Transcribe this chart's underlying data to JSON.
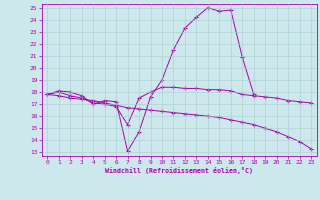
{
  "title": "",
  "xlabel": "Windchill (Refroidissement éolien,°C)",
  "background_color": "#cce8ec",
  "grid_color": "#aacccc",
  "line_color": "#aa00aa",
  "xlim": [
    -0.5,
    23.5
  ],
  "ylim": [
    12.7,
    25.3
  ],
  "yticks": [
    13,
    14,
    15,
    16,
    17,
    18,
    19,
    20,
    21,
    22,
    23,
    24,
    25
  ],
  "xticks": [
    0,
    1,
    2,
    3,
    4,
    5,
    6,
    7,
    8,
    9,
    10,
    11,
    12,
    13,
    14,
    15,
    16,
    17,
    18,
    19,
    20,
    21,
    22,
    23
  ],
  "series": [
    {
      "x": [
        0,
        1,
        2,
        3,
        4,
        5,
        6,
        7,
        8,
        9,
        10,
        11,
        12,
        13,
        14,
        15,
        16,
        17,
        18
      ],
      "y": [
        17.8,
        18.1,
        18.0,
        17.7,
        17.0,
        17.3,
        17.2,
        13.1,
        14.7,
        17.6,
        19.0,
        21.5,
        23.3,
        24.2,
        25.0,
        24.7,
        24.8,
        20.9,
        17.8
      ]
    },
    {
      "x": [
        0,
        1,
        2,
        3,
        4,
        5,
        6,
        7,
        8,
        9,
        10,
        11,
        12,
        13,
        14,
        15,
        16,
        17,
        18,
        19,
        20,
        21,
        22,
        23
      ],
      "y": [
        17.8,
        18.0,
        17.7,
        17.5,
        17.1,
        17.0,
        16.8,
        15.3,
        17.5,
        18.0,
        18.4,
        18.4,
        18.3,
        18.3,
        18.2,
        18.2,
        18.1,
        17.8,
        17.7,
        17.6,
        17.5,
        17.3,
        17.2,
        17.1
      ]
    },
    {
      "x": [
        0,
        1,
        2,
        3,
        4,
        5,
        6,
        7,
        8,
        9,
        10,
        11,
        12,
        13,
        14,
        15,
        16,
        17,
        18,
        19,
        20,
        21,
        22,
        23
      ],
      "y": [
        17.8,
        17.7,
        17.5,
        17.4,
        17.3,
        17.1,
        16.9,
        16.7,
        16.6,
        16.5,
        16.4,
        16.3,
        16.2,
        16.1,
        16.0,
        15.9,
        15.7,
        15.5,
        15.3,
        15.0,
        14.7,
        14.3,
        13.9,
        13.3
      ]
    }
  ]
}
